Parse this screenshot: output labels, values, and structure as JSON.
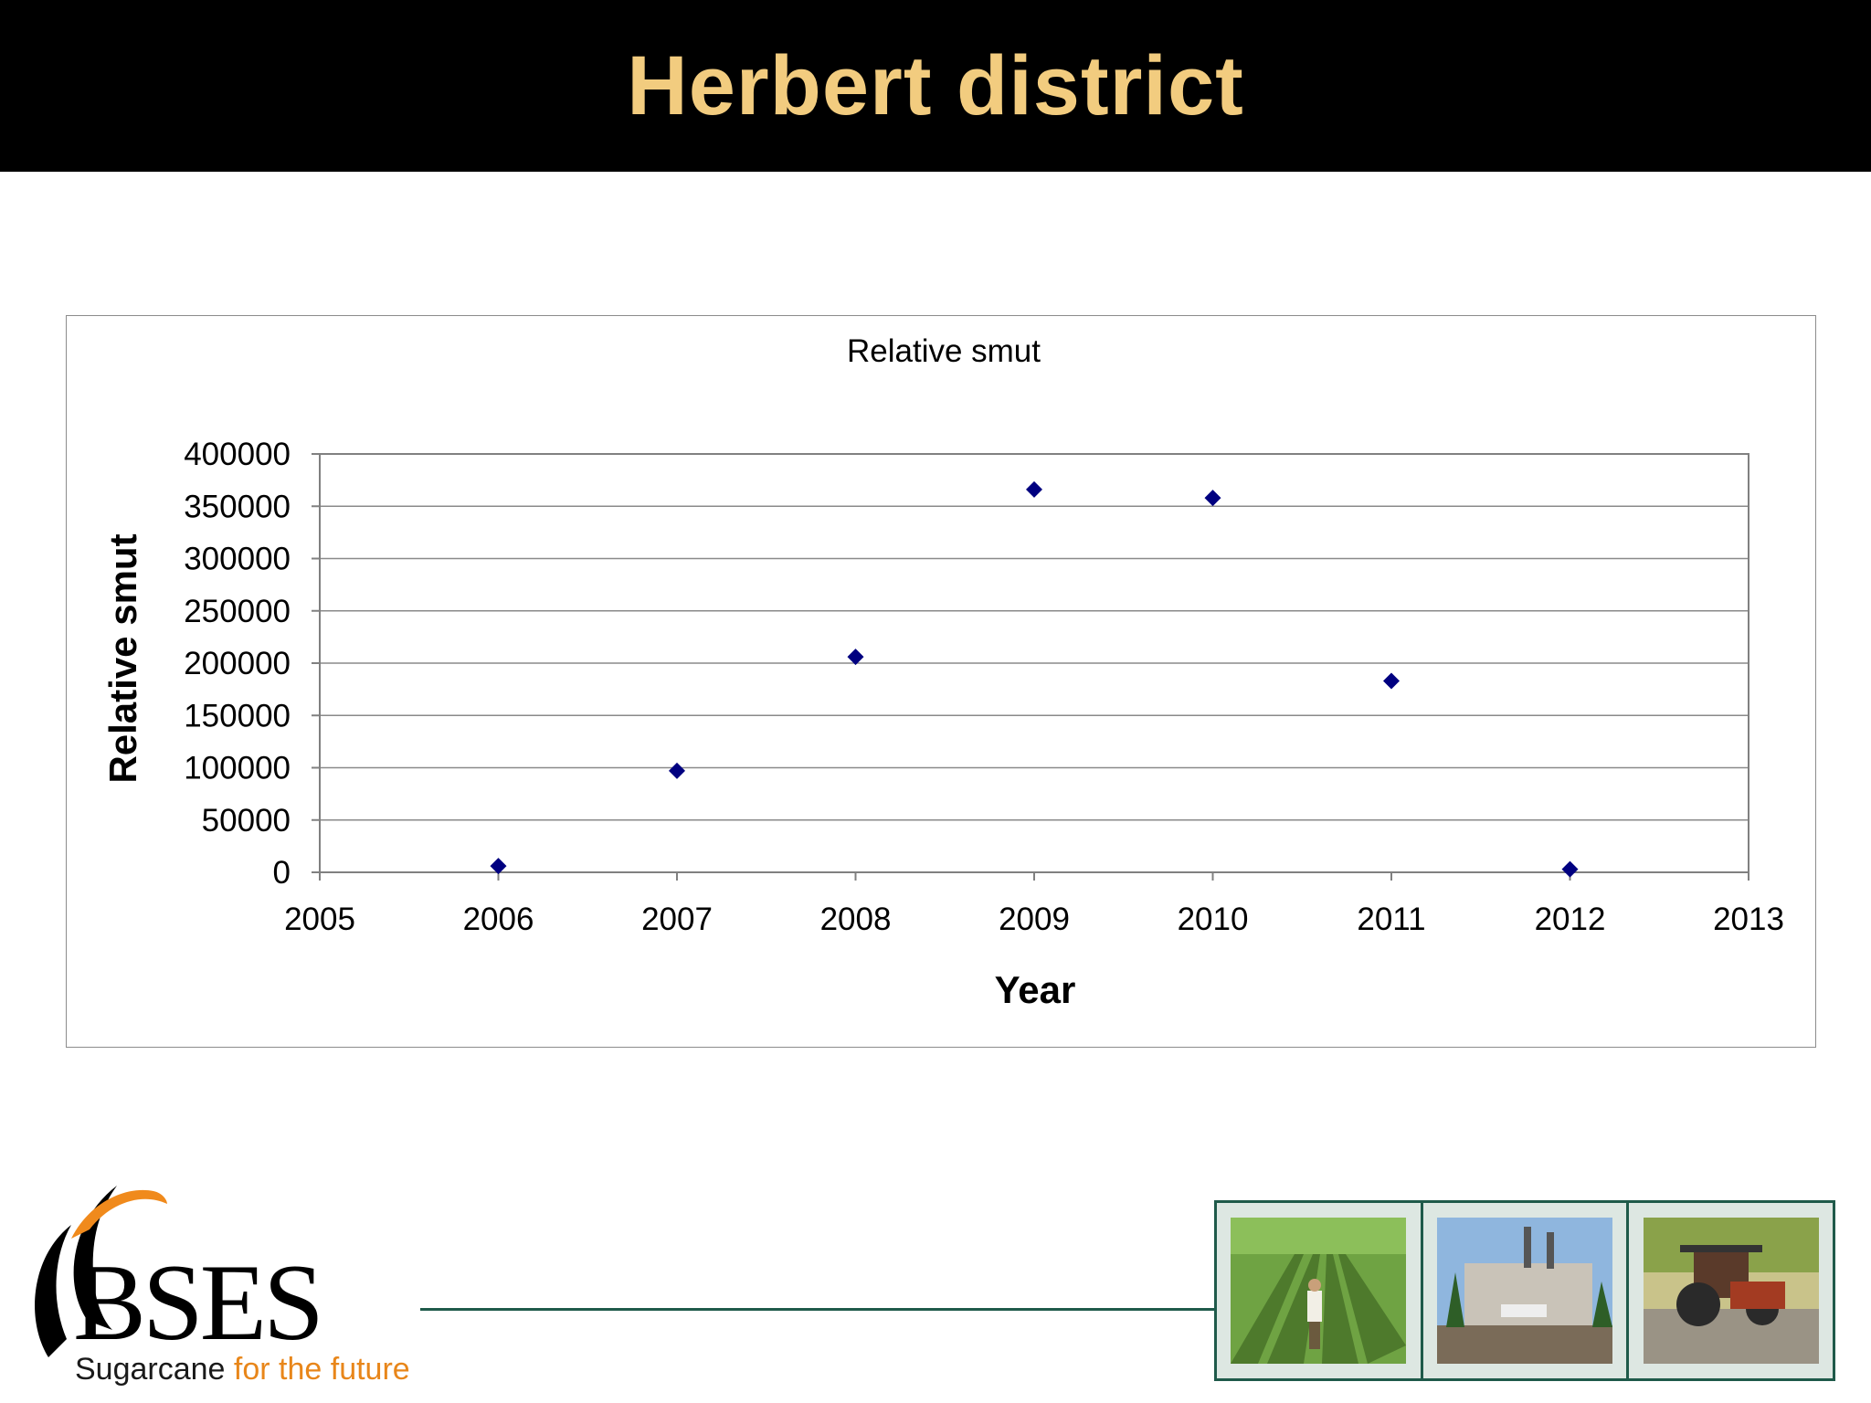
{
  "slide": {
    "title": "Herbert district"
  },
  "chart_data": {
    "type": "scatter",
    "title": "Relative smut",
    "xlabel": "Year",
    "ylabel": "Relative smut",
    "xlim": [
      2005,
      2013
    ],
    "ylim": [
      0,
      400000
    ],
    "xticks": [
      "2005",
      "2006",
      "2007",
      "2008",
      "2009",
      "2010",
      "2011",
      "2012",
      "2013"
    ],
    "yticks": [
      "0",
      "50000",
      "100000",
      "150000",
      "200000",
      "250000",
      "300000",
      "350000",
      "400000"
    ],
    "grid": "horizontal",
    "marker": "diamond",
    "color": "#000080",
    "points": [
      {
        "x": 2006,
        "y": 6000
      },
      {
        "x": 2007,
        "y": 97000
      },
      {
        "x": 2008,
        "y": 206000
      },
      {
        "x": 2009,
        "y": 366000
      },
      {
        "x": 2010,
        "y": 358000
      },
      {
        "x": 2011,
        "y": 183000
      },
      {
        "x": 2012,
        "y": 3000
      }
    ]
  },
  "footer": {
    "logo_text": "BSES",
    "tagline_part1": "Sugarcane ",
    "tagline_part2": "for the future",
    "photos": [
      "cane-field-photo",
      "sugar-mill-photo",
      "tractor-photo"
    ]
  }
}
